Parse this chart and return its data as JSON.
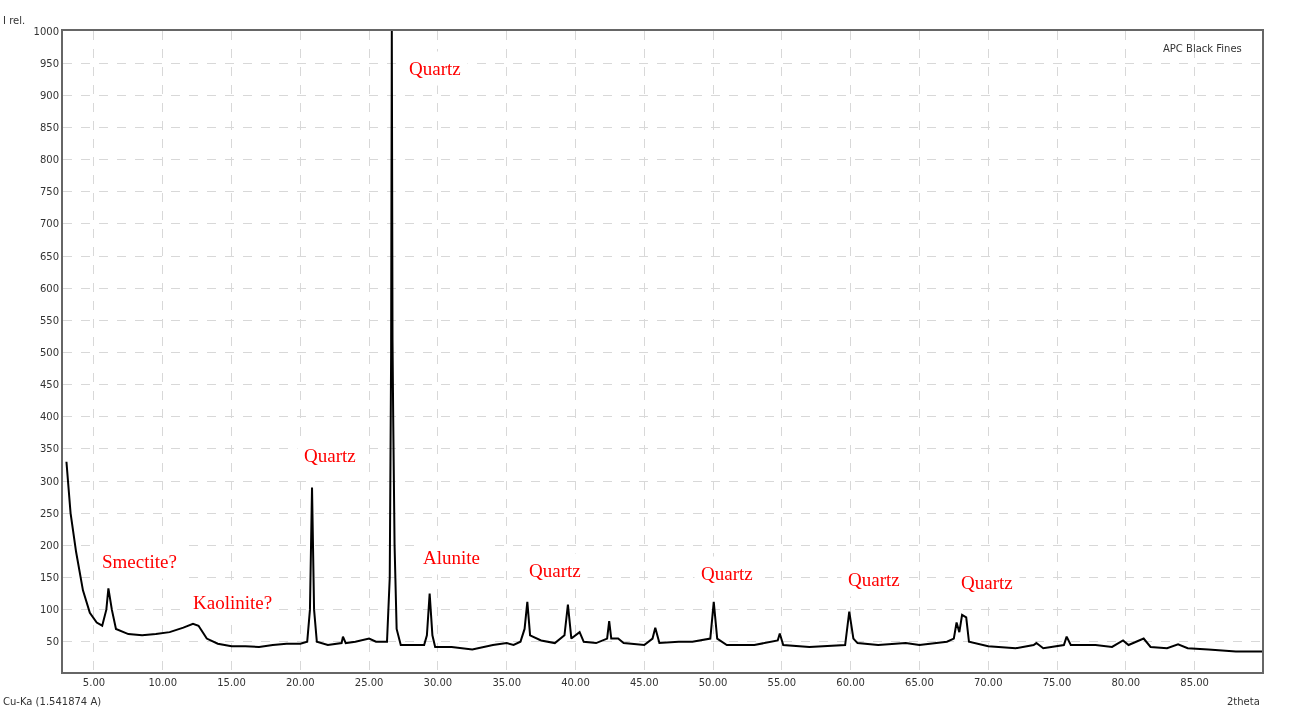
{
  "chart_data": {
    "type": "line",
    "xlabel": "2theta",
    "ylabel": "I rel.",
    "xlim": [
      2.75,
      89.9
    ],
    "ylim": [
      3,
      1000
    ],
    "xticks": [
      {
        "value": 5,
        "label": "5.00"
      },
      {
        "value": 10,
        "label": "10.00"
      },
      {
        "value": 15,
        "label": "15.00"
      },
      {
        "value": 20,
        "label": "20.00"
      },
      {
        "value": 25,
        "label": "25.00"
      },
      {
        "value": 30,
        "label": "30.00"
      },
      {
        "value": 35,
        "label": "35.00"
      },
      {
        "value": 40,
        "label": "40.00"
      },
      {
        "value": 45,
        "label": "45.00"
      },
      {
        "value": 50,
        "label": "50.00"
      },
      {
        "value": 55,
        "label": "55.00"
      },
      {
        "value": 60,
        "label": "60.00"
      },
      {
        "value": 65,
        "label": "65.00"
      },
      {
        "value": 70,
        "label": "70.00"
      },
      {
        "value": 75,
        "label": "75.00"
      },
      {
        "value": 80,
        "label": "80.00"
      },
      {
        "value": 85,
        "label": "85.00"
      }
    ],
    "yticks": [
      50,
      100,
      150,
      200,
      250,
      300,
      350,
      400,
      450,
      500,
      550,
      600,
      650,
      700,
      750,
      800,
      850,
      900,
      950,
      1000
    ],
    "grid": true,
    "line_style": "solid",
    "marker": "none",
    "series": [
      {
        "color": "#000000",
        "x": [
          3.0,
          3.3,
          3.7,
          4.2,
          4.7,
          5.2,
          5.6,
          5.9,
          6.05,
          6.3,
          6.6,
          7.5,
          8.5,
          9.5,
          10.5,
          11.5,
          12.2,
          12.6,
          13.2,
          14,
          15,
          16,
          17,
          18,
          19,
          20,
          20.5,
          20.7,
          20.85,
          21.0,
          21.2,
          22,
          23,
          23.1,
          23.3,
          24,
          25,
          25.5,
          26.3,
          26.5,
          26.6,
          26.65,
          26.7,
          26.75,
          26.85,
          27.0,
          27.3,
          28,
          29,
          29.2,
          29.4,
          29.6,
          29.8,
          31,
          32.5,
          34,
          35,
          35.5,
          36,
          36.3,
          36.5,
          36.7,
          37.5,
          38.5,
          39.2,
          39.45,
          39.7,
          40.3,
          40.6,
          41.5,
          42.3,
          42.45,
          42.6,
          43.1,
          43.5,
          45,
          45.6,
          45.8,
          46.1,
          47.5,
          48.5,
          49.8,
          50.05,
          50.3,
          51,
          53,
          54.7,
          54.85,
          55.1,
          57,
          59.6,
          59.9,
          60.2,
          60.5,
          62,
          64,
          65,
          67,
          67.5,
          67.7,
          67.9,
          68.1,
          68.4,
          68.6,
          70,
          72,
          73.3,
          73.5,
          74,
          75.5,
          75.7,
          76,
          77.8,
          79,
          79.8,
          80.2,
          81.3,
          81.8,
          83,
          83.8,
          84.5,
          86,
          88,
          89.9
        ],
        "values": [
          330,
          250,
          190,
          130,
          95,
          80,
          75,
          100,
          133,
          100,
          70,
          62,
          60,
          62,
          65,
          72,
          78,
          75,
          55,
          47,
          43,
          43,
          42,
          45,
          47,
          47,
          50,
          100,
          290,
          100,
          50,
          45,
          48,
          58,
          48,
          50,
          55,
          50,
          50,
          150,
          500,
          1000,
          520,
          400,
          200,
          70,
          45,
          45,
          45,
          60,
          125,
          60,
          42,
          42,
          38,
          45,
          48,
          45,
          50,
          70,
          112,
          60,
          52,
          48,
          60,
          108,
          55,
          65,
          50,
          48,
          55,
          82,
          55,
          55,
          48,
          45,
          55,
          72,
          48,
          50,
          50,
          55,
          112,
          55,
          45,
          45,
          52,
          63,
          45,
          42,
          45,
          97,
          55,
          48,
          45,
          48,
          45,
          50,
          55,
          80,
          65,
          92,
          88,
          50,
          43,
          40,
          45,
          48,
          40,
          45,
          58,
          45,
          45,
          42,
          52,
          45,
          55,
          42,
          40,
          46,
          40,
          38,
          35,
          35
        ]
      }
    ],
    "annotations": [
      "Cu-Ka (1.541874 A)",
      "APC Black Fines",
      "Quartz",
      "Quartz",
      "Smectite?",
      "Kaolinite?",
      "Alunite",
      "Quartz",
      "Quartz",
      "Quartz",
      "Quartz"
    ]
  }
}
